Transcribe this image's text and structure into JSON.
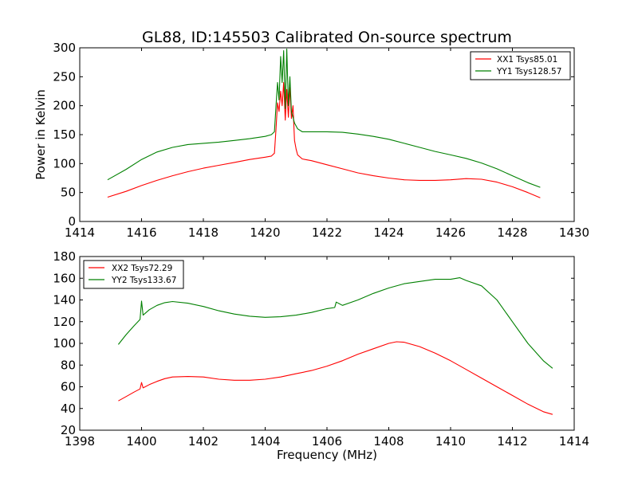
{
  "title": "GL88, ID:145503 Calibrated On-source spectrum",
  "chart_data": [
    {
      "type": "line",
      "xlabel": "",
      "ylabel": "Power in Kelvin",
      "xlim": [
        1414,
        1430
      ],
      "ylim": [
        0,
        300
      ],
      "xticks": [
        1414,
        1416,
        1418,
        1420,
        1422,
        1424,
        1426,
        1428,
        1430
      ],
      "yticks": [
        0,
        50,
        100,
        150,
        200,
        250,
        300
      ],
      "legend_position": "top-right",
      "series": [
        {
          "name": "XX1 Tsys85.01",
          "color": "#ff0000",
          "x": [
            1414.9,
            1415.5,
            1416.0,
            1416.5,
            1417.0,
            1417.5,
            1418.0,
            1418.5,
            1419.0,
            1419.5,
            1420.0,
            1420.2,
            1420.3,
            1420.35,
            1420.4,
            1420.45,
            1420.5,
            1420.55,
            1420.6,
            1420.65,
            1420.7,
            1420.75,
            1420.8,
            1420.85,
            1420.9,
            1420.95,
            1421.0,
            1421.05,
            1421.2,
            1421.5,
            1422.0,
            1422.5,
            1423.0,
            1423.5,
            1424.0,
            1424.5,
            1425.0,
            1425.5,
            1426.0,
            1426.5,
            1427.0,
            1427.5,
            1428.0,
            1428.5,
            1428.9
          ],
          "y": [
            42,
            52,
            62,
            71,
            79,
            86,
            92,
            97,
            102,
            107,
            111,
            113,
            118,
            160,
            205,
            190,
            225,
            200,
            240,
            175,
            228,
            180,
            232,
            178,
            200,
            140,
            125,
            115,
            108,
            105,
            98,
            91,
            84,
            79,
            75,
            72,
            71,
            71,
            72,
            74,
            73,
            68,
            60,
            50,
            41
          ]
        },
        {
          "name": "YY1 Tsys128.57",
          "color": "#008000",
          "x": [
            1414.9,
            1415.5,
            1416.0,
            1416.5,
            1417.0,
            1417.5,
            1418.0,
            1418.5,
            1419.0,
            1419.5,
            1420.0,
            1420.2,
            1420.3,
            1420.35,
            1420.4,
            1420.45,
            1420.5,
            1420.55,
            1420.6,
            1420.65,
            1420.7,
            1420.75,
            1420.8,
            1420.85,
            1420.9,
            1420.95,
            1421.0,
            1421.05,
            1421.2,
            1421.5,
            1422.0,
            1422.5,
            1423.0,
            1423.5,
            1424.0,
            1424.5,
            1425.0,
            1425.5,
            1426.0,
            1426.5,
            1427.0,
            1427.5,
            1428.0,
            1428.5,
            1428.9
          ],
          "y": [
            72,
            90,
            107,
            120,
            128,
            133,
            135,
            137,
            140,
            143,
            147,
            150,
            155,
            200,
            240,
            210,
            285,
            240,
            295,
            195,
            298,
            200,
            250,
            190,
            180,
            170,
            165,
            160,
            155,
            155,
            155,
            154,
            151,
            147,
            142,
            135,
            128,
            121,
            115,
            109,
            101,
            91,
            79,
            67,
            59
          ]
        }
      ]
    },
    {
      "type": "line",
      "xlabel": "Frequency (MHz)",
      "ylabel": "",
      "xlim": [
        1398,
        1414
      ],
      "ylim": [
        20,
        180
      ],
      "xticks": [
        1398,
        1400,
        1402,
        1404,
        1406,
        1408,
        1410,
        1412,
        1414
      ],
      "yticks": [
        20,
        40,
        60,
        80,
        100,
        120,
        140,
        160,
        180
      ],
      "legend_position": "top-left",
      "series": [
        {
          "name": "XX2 Tsys72.29",
          "color": "#ff0000",
          "x": [
            1399.25,
            1399.5,
            1399.75,
            1399.95,
            1400.0,
            1400.05,
            1400.25,
            1400.5,
            1400.75,
            1401.0,
            1401.5,
            1402.0,
            1402.5,
            1403.0,
            1403.5,
            1404.0,
            1404.5,
            1405.0,
            1405.5,
            1406.0,
            1406.5,
            1407.0,
            1407.5,
            1408.0,
            1408.25,
            1408.5,
            1409.0,
            1409.5,
            1410.0,
            1410.5,
            1411.0,
            1411.5,
            1412.0,
            1412.5,
            1413.0,
            1413.3
          ],
          "y": [
            47,
            51,
            55,
            58,
            64,
            59,
            62,
            65,
            67.5,
            69,
            69.5,
            69,
            67,
            66,
            66,
            67,
            69,
            72,
            75,
            79,
            84,
            90,
            95,
            100,
            101.5,
            101,
            97,
            91,
            84,
            76,
            68,
            60,
            52,
            44,
            37,
            34.5
          ]
        },
        {
          "name": "YY2 Tsys133.67",
          "color": "#008000",
          "x": [
            1399.25,
            1399.5,
            1399.75,
            1399.95,
            1400.0,
            1400.05,
            1400.25,
            1400.5,
            1400.75,
            1401.0,
            1401.5,
            1402.0,
            1402.5,
            1403.0,
            1403.5,
            1404.0,
            1404.5,
            1405.0,
            1405.5,
            1406.0,
            1406.25,
            1406.3,
            1406.5,
            1407.0,
            1407.5,
            1408.0,
            1408.5,
            1409.0,
            1409.5,
            1410.0,
            1410.3,
            1410.5,
            1411.0,
            1411.5,
            1412.0,
            1412.5,
            1413.0,
            1413.3
          ],
          "y": [
            99,
            108,
            116,
            122,
            139,
            126,
            131,
            135,
            137.5,
            138.5,
            137,
            134,
            130,
            127,
            125,
            124,
            124.5,
            126,
            128.5,
            132,
            133,
            138,
            135,
            140,
            146,
            151,
            155,
            157,
            159,
            159,
            160.5,
            158,
            153,
            140,
            120,
            100,
            84,
            77
          ]
        }
      ]
    }
  ]
}
